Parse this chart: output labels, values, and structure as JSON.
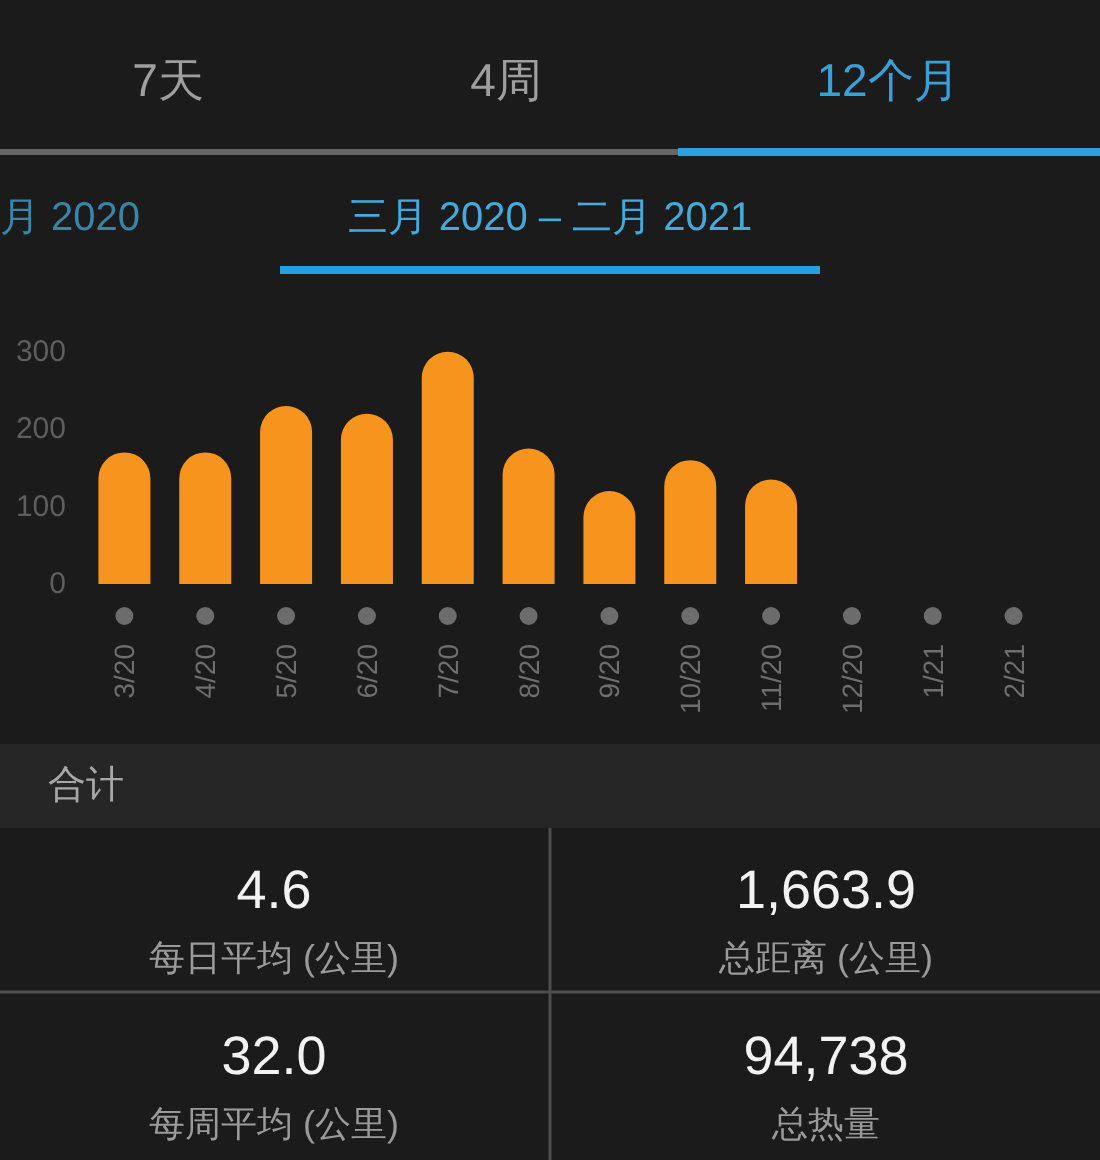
{
  "chart_data": [
    {
      "type": "bar",
      "title": "三月 2020 – 二月 2021",
      "annotations": [
        "7天",
        "4周",
        "12个月",
        "月 2020"
      ],
      "categories": [
        "3/20",
        "4/20",
        "5/20",
        "6/20",
        "7/20",
        "8/20",
        "9/20",
        "10/20",
        "11/20",
        "12/20",
        "1/21",
        "2/21"
      ],
      "values": [
        170,
        170,
        230,
        220,
        300,
        175,
        120,
        160,
        135,
        null,
        null,
        null
      ],
      "color": "#f7941d",
      "ylim": [
        0,
        310
      ],
      "yticks": [
        0,
        100,
        200,
        300
      ]
    },
    {
      "type": "other",
      "title": "合计",
      "annotations": [
        "4.6",
        "每日平均 (公里)",
        "1,663.9",
        "总距离 (公里)",
        "32.0",
        "每周平均 (公里)",
        "94,738",
        "总热量"
      ]
    }
  ]
}
